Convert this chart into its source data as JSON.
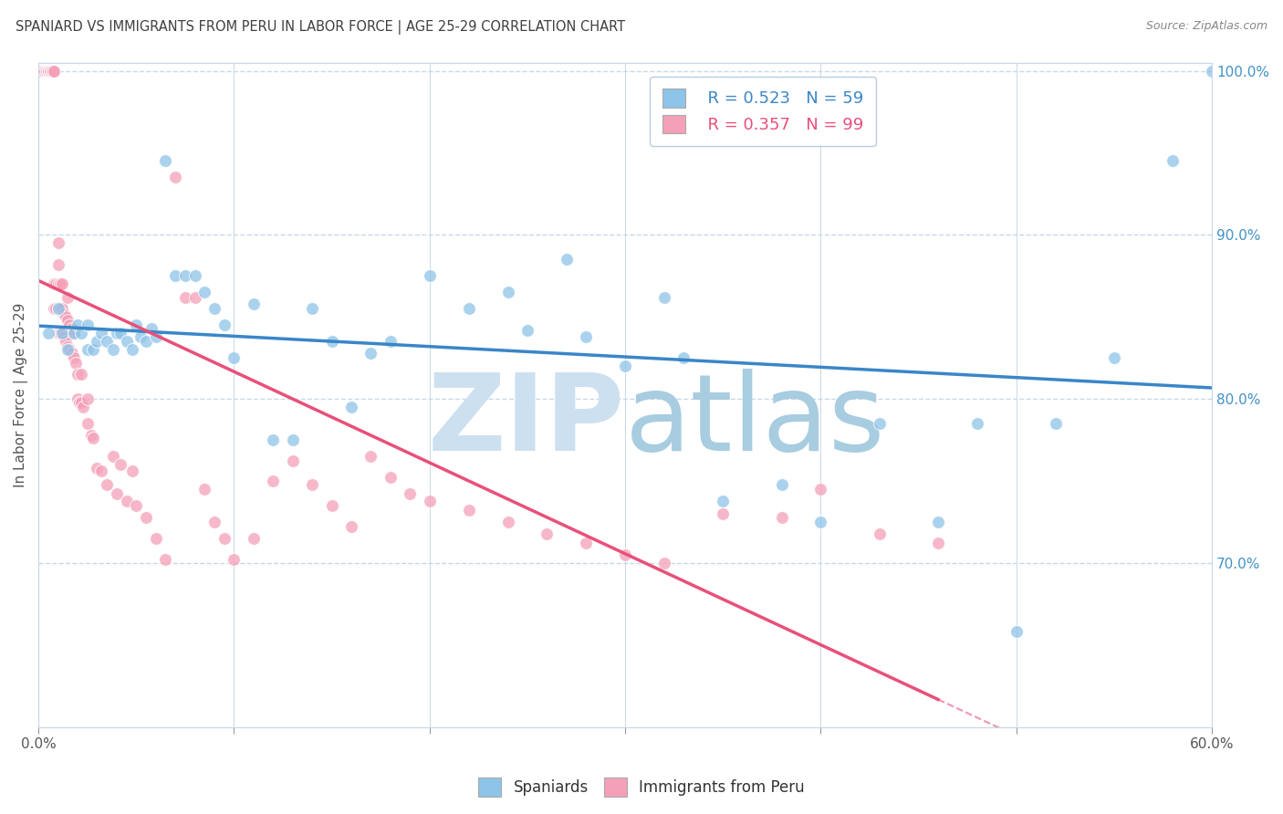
{
  "title": "SPANIARD VS IMMIGRANTS FROM PERU IN LABOR FORCE | AGE 25-29 CORRELATION CHART",
  "source": "Source: ZipAtlas.com",
  "ylabel": "In Labor Force | Age 25-29",
  "legend_blue_r": "R = 0.523",
  "legend_blue_n": "N = 59",
  "legend_pink_r": "R = 0.357",
  "legend_pink_n": "N = 99",
  "legend_blue_label": "Spaniards",
  "legend_pink_label": "Immigrants from Peru",
  "xlim": [
    0.0,
    0.6
  ],
  "ylim": [
    0.6,
    1.005
  ],
  "x_ticks": [
    0.0,
    0.1,
    0.2,
    0.3,
    0.4,
    0.5,
    0.6
  ],
  "x_tick_labels": [
    "0.0%",
    "",
    "",
    "",
    "",
    "",
    "60.0%"
  ],
  "y_ticks_right": [
    0.7,
    0.8,
    0.9,
    1.0
  ],
  "y_tick_labels_right": [
    "70.0%",
    "80.0%",
    "90.0%",
    "100.0%"
  ],
  "grid_color": "#c8d8e8",
  "background_color": "#ffffff",
  "blue_color": "#8ec4e8",
  "pink_color": "#f4a0b8",
  "blue_trend_color": "#3a86c8",
  "pink_trend_color": "#e8507a",
  "title_color": "#404040",
  "watermark_zip_color": "#cde0f0",
  "watermark_atlas_color": "#a8cce0",
  "blue_x": [
    0.005,
    0.01,
    0.012,
    0.015,
    0.018,
    0.02,
    0.022,
    0.025,
    0.025,
    0.028,
    0.03,
    0.032,
    0.035,
    0.038,
    0.04,
    0.042,
    0.045,
    0.048,
    0.05,
    0.052,
    0.055,
    0.058,
    0.06,
    0.065,
    0.07,
    0.075,
    0.08,
    0.085,
    0.09,
    0.095,
    0.1,
    0.11,
    0.12,
    0.13,
    0.14,
    0.15,
    0.16,
    0.17,
    0.18,
    0.2,
    0.22,
    0.24,
    0.25,
    0.27,
    0.28,
    0.3,
    0.32,
    0.33,
    0.35,
    0.38,
    0.4,
    0.43,
    0.46,
    0.48,
    0.5,
    0.52,
    0.55,
    0.58,
    0.6
  ],
  "blue_y": [
    0.84,
    0.855,
    0.84,
    0.83,
    0.84,
    0.845,
    0.84,
    0.83,
    0.845,
    0.83,
    0.835,
    0.84,
    0.835,
    0.83,
    0.84,
    0.84,
    0.835,
    0.83,
    0.845,
    0.838,
    0.835,
    0.843,
    0.838,
    0.945,
    0.875,
    0.875,
    0.875,
    0.865,
    0.855,
    0.845,
    0.825,
    0.858,
    0.775,
    0.775,
    0.855,
    0.835,
    0.795,
    0.828,
    0.835,
    0.875,
    0.855,
    0.865,
    0.842,
    0.885,
    0.838,
    0.82,
    0.862,
    0.825,
    0.738,
    0.748,
    0.725,
    0.785,
    0.725,
    0.785,
    0.658,
    0.785,
    0.825,
    0.945,
    1.0
  ],
  "pink_x": [
    0.002,
    0.003,
    0.003,
    0.003,
    0.004,
    0.004,
    0.004,
    0.005,
    0.005,
    0.005,
    0.005,
    0.005,
    0.006,
    0.006,
    0.006,
    0.007,
    0.007,
    0.007,
    0.008,
    0.008,
    0.008,
    0.008,
    0.009,
    0.009,
    0.01,
    0.01,
    0.01,
    0.01,
    0.01,
    0.011,
    0.011,
    0.011,
    0.012,
    0.012,
    0.012,
    0.013,
    0.013,
    0.014,
    0.014,
    0.015,
    0.015,
    0.015,
    0.016,
    0.016,
    0.017,
    0.017,
    0.018,
    0.018,
    0.019,
    0.02,
    0.02,
    0.021,
    0.022,
    0.022,
    0.023,
    0.025,
    0.025,
    0.027,
    0.028,
    0.03,
    0.032,
    0.035,
    0.038,
    0.04,
    0.042,
    0.045,
    0.048,
    0.05,
    0.055,
    0.06,
    0.065,
    0.07,
    0.075,
    0.08,
    0.085,
    0.09,
    0.095,
    0.1,
    0.11,
    0.12,
    0.13,
    0.14,
    0.15,
    0.16,
    0.17,
    0.18,
    0.19,
    0.2,
    0.22,
    0.24,
    0.26,
    0.28,
    0.3,
    0.32,
    0.35,
    0.38,
    0.4,
    0.43,
    0.46
  ],
  "pink_y": [
    1.0,
    1.0,
    1.0,
    1.0,
    1.0,
    1.0,
    1.0,
    1.0,
    1.0,
    1.0,
    1.0,
    1.0,
    1.0,
    1.0,
    1.0,
    1.0,
    1.0,
    1.0,
    1.0,
    1.0,
    0.855,
    0.87,
    0.855,
    0.87,
    0.84,
    0.855,
    0.87,
    0.882,
    0.895,
    0.84,
    0.855,
    0.87,
    0.84,
    0.855,
    0.87,
    0.838,
    0.852,
    0.835,
    0.85,
    0.832,
    0.848,
    0.862,
    0.83,
    0.845,
    0.828,
    0.843,
    0.825,
    0.84,
    0.822,
    0.8,
    0.815,
    0.798,
    0.798,
    0.815,
    0.795,
    0.785,
    0.8,
    0.778,
    0.776,
    0.758,
    0.756,
    0.748,
    0.765,
    0.742,
    0.76,
    0.738,
    0.756,
    0.735,
    0.728,
    0.715,
    0.702,
    0.935,
    0.862,
    0.862,
    0.745,
    0.725,
    0.715,
    0.702,
    0.715,
    0.75,
    0.762,
    0.748,
    0.735,
    0.722,
    0.765,
    0.752,
    0.742,
    0.738,
    0.732,
    0.725,
    0.718,
    0.712,
    0.705,
    0.7,
    0.73,
    0.728,
    0.745,
    0.718,
    0.712
  ]
}
